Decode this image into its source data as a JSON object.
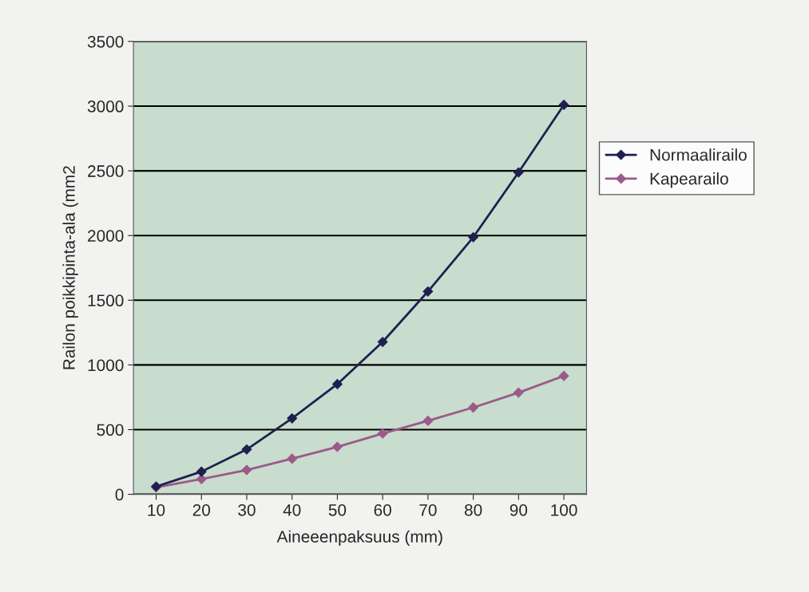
{
  "chart_data": {
    "type": "line",
    "xlabel": "Aineeenpaksuus (mm)",
    "ylabel": "Railon poikkipinta-ala (mm2",
    "categories": [
      "10",
      "20",
      "30",
      "40",
      "50",
      "60",
      "70",
      "80",
      "90",
      "100"
    ],
    "series": [
      {
        "name": "Normaalirailo",
        "color": "#1f2050",
        "values": [
          60,
          175,
          347,
          587,
          852,
          1178,
          1568,
          1987,
          2488,
          3010
        ]
      },
      {
        "name": "Kapearailo",
        "color": "#9b5a8a",
        "values": [
          54,
          118,
          188,
          275,
          367,
          470,
          568,
          671,
          786,
          915
        ]
      }
    ],
    "ylim": [
      0,
      3500
    ],
    "yticks": [
      0,
      500,
      1000,
      1500,
      2000,
      2500,
      3000,
      3500
    ],
    "grid": "y",
    "legend": "right",
    "marker": "diamond",
    "line_style": "solid"
  }
}
